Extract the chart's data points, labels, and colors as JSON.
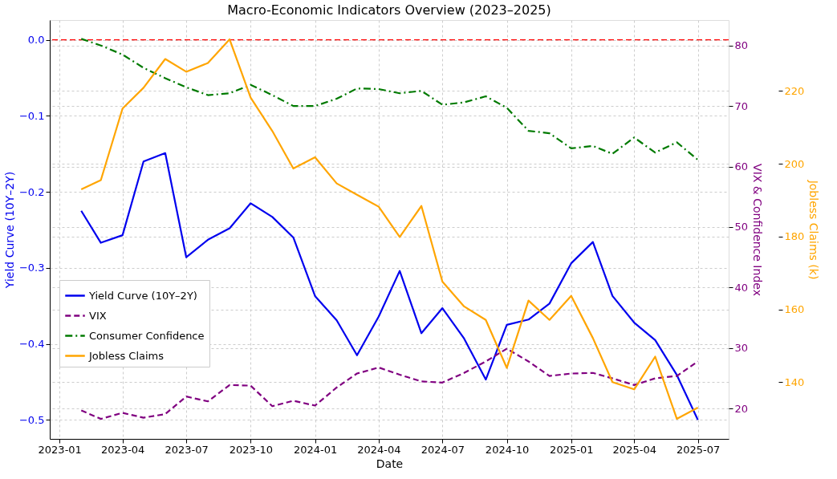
{
  "chart_data": {
    "type": "line",
    "title": "Macro-Economic Indicators Overview (2023–2025)",
    "xlabel": "Date",
    "ylabel": "Yield Curve (10Y–2Y)",
    "y2label": "VIX & Confidence Index",
    "y3label": "Jobless Claims (k)",
    "x": [
      "2023-02",
      "2023-03",
      "2023-04",
      "2023-05",
      "2023-06",
      "2023-07",
      "2023-08",
      "2023-09",
      "2023-10",
      "2023-11",
      "2023-12",
      "2024-01",
      "2024-02",
      "2024-03",
      "2024-04",
      "2024-05",
      "2024-06",
      "2024-07",
      "2024-08",
      "2024-09",
      "2024-10",
      "2024-11",
      "2024-12",
      "2025-01",
      "2025-02",
      "2025-03",
      "2025-04",
      "2025-05",
      "2025-06",
      "2025-07"
    ],
    "series": [
      {
        "name": "Yield Curve (10Y–2Y)",
        "color": "#0000ee",
        "line_style": "solid",
        "values": [
          -0.225,
          -0.267,
          -0.257,
          -0.16,
          -0.149,
          -0.286,
          -0.263,
          -0.248,
          -0.215,
          -0.233,
          -0.26,
          -0.337,
          -0.369,
          -0.415,
          -0.364,
          -0.304,
          -0.386,
          -0.353,
          -0.393,
          -0.447,
          -0.375,
          -0.368,
          -0.347,
          -0.294,
          -0.266,
          -0.337,
          -0.372,
          -0.395,
          -0.441,
          -0.5
        ]
      },
      {
        "name": "VIX",
        "color": "#800080",
        "line_style": "dashed",
        "axis": "y2",
        "values": [
          19.7,
          18.3,
          19.3,
          18.5,
          19.1,
          22.0,
          21.2,
          23.9,
          23.8,
          20.4,
          21.3,
          20.5,
          23.5,
          25.8,
          26.8,
          25.6,
          24.5,
          24.3,
          25.9,
          27.8,
          29.9,
          27.8,
          25.4,
          25.8,
          25.9,
          25.0,
          23.9,
          25.0,
          25.4,
          27.8
        ]
      },
      {
        "name": "Consumer Confidence",
        "color": "#007a00",
        "line_style": "dashdot",
        "axis": "y2",
        "values": [
          81.1,
          80.0,
          78.5,
          76.3,
          74.6,
          73.1,
          71.8,
          72.1,
          73.5,
          71.8,
          70.0,
          70.0,
          71.2,
          72.9,
          72.8,
          72.1,
          72.5,
          70.2,
          70.6,
          71.6,
          69.7,
          65.9,
          65.5,
          63.0,
          63.4,
          62.1,
          64.8,
          62.3,
          64.0,
          61.1
        ]
      },
      {
        "name": "Jobless Claims",
        "color": "#ffa500",
        "line_style": "solid",
        "axis": "y3",
        "values": [
          193.0,
          195.5,
          215.2,
          220.9,
          228.8,
          225.3,
          227.7,
          234.2,
          218.2,
          209.0,
          198.7,
          201.8,
          194.6,
          191.5,
          188.2,
          179.9,
          188.4,
          167.6,
          160.8,
          157.1,
          143.9,
          162.4,
          157.1,
          163.7,
          152.1,
          140.0,
          138.0,
          147.0,
          129.9,
          133.0
        ]
      }
    ],
    "xlim": [
      "2022-12-18",
      "2025-08-14"
    ],
    "xticks": [
      "2023-01",
      "2023-04",
      "2023-07",
      "2023-10",
      "2024-01",
      "2024-04",
      "2024-07",
      "2024-10",
      "2025-01",
      "2025-04",
      "2025-07"
    ],
    "ylim": [
      -0.525,
      0.026
    ],
    "yticks": [
      {
        "value": -0.5,
        "label": "−0.5"
      },
      {
        "value": -0.4,
        "label": "−0.4"
      },
      {
        "value": -0.3,
        "label": "−0.3"
      },
      {
        "value": -0.2,
        "label": "−0.2"
      },
      {
        "value": -0.1,
        "label": "−0.1"
      },
      {
        "value": 0,
        "label": "0.0"
      }
    ],
    "y2lim": [
      15,
      84.2
    ],
    "y2ticks": [
      20,
      30,
      40,
      50,
      60,
      70,
      80
    ],
    "y3lim": [
      124.4,
      239.5
    ],
    "y3ticks": [
      140,
      160,
      180,
      200,
      220
    ],
    "ref_lines": [
      {
        "axis": "y",
        "value": 0,
        "color": "#ff0000",
        "line_style": "dashed"
      }
    ],
    "grid": true,
    "legend": "bottom left"
  }
}
